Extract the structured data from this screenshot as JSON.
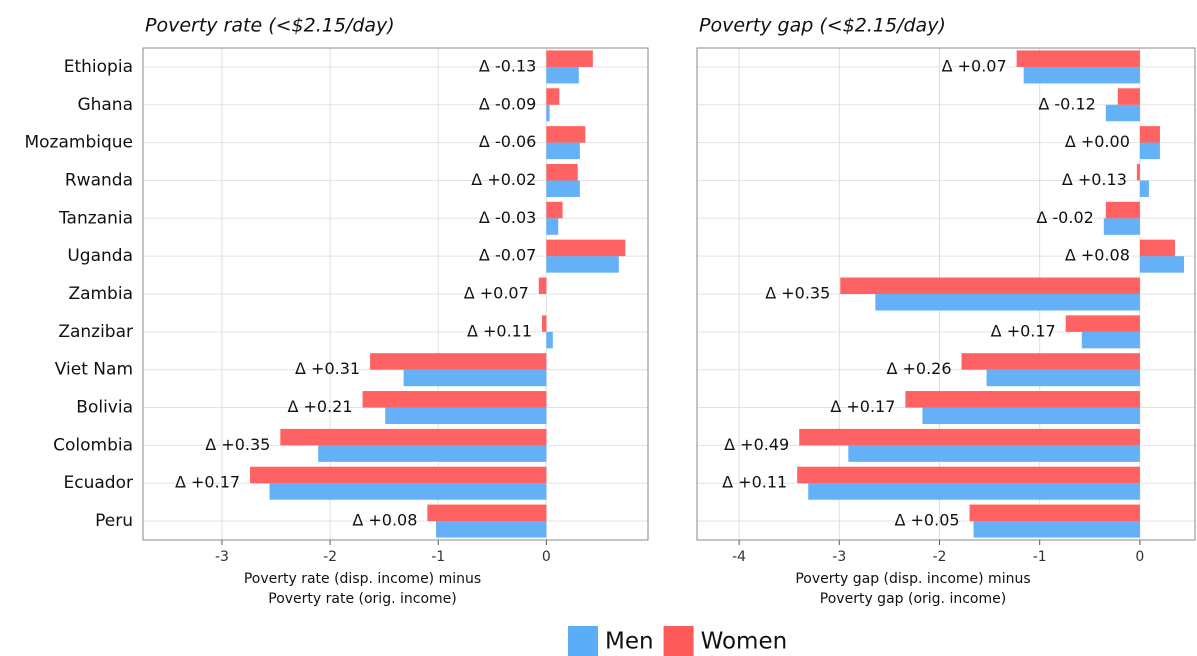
{
  "chart_data": [
    {
      "type": "bar",
      "orientation": "horizontal",
      "title": "Poverty rate (<$2.15/day)",
      "xlabel": [
        "Poverty rate (disp. income) minus",
        "Poverty rate (orig. income)"
      ],
      "categories": [
        "Ethiopia",
        "Ghana",
        "Mozambique",
        "Rwanda",
        "Tanzania",
        "Uganda",
        "Zambia",
        "Zanzibar",
        "Viet Nam",
        "Bolivia",
        "Colombia",
        "Ecuador",
        "Peru"
      ],
      "series": [
        {
          "name": "Men",
          "color": "#5cadf8",
          "values": [
            0.3,
            0.03,
            0.31,
            0.31,
            0.11,
            0.67,
            0.0,
            0.06,
            -1.32,
            -1.49,
            -2.11,
            -2.56,
            -1.02
          ]
        },
        {
          "name": "Women",
          "color": "#ff5a5a",
          "values": [
            0.43,
            0.12,
            0.36,
            0.29,
            0.15,
            0.73,
            -0.07,
            -0.04,
            -1.63,
            -1.7,
            -2.46,
            -2.74,
            -1.1
          ]
        }
      ],
      "annotations": [
        {
          "text": "Δ -0.13",
          "color": "#2b95ec"
        },
        {
          "text": "Δ -0.09",
          "color": "#2b95ec"
        },
        {
          "text": "Δ -0.06",
          "color": "#2b95ec"
        },
        {
          "text": "Δ +0.02",
          "color": "#e8191e"
        },
        {
          "text": "Δ -0.03",
          "color": "#2b95ec"
        },
        {
          "text": "Δ -0.07",
          "color": "#2b95ec"
        },
        {
          "text": "Δ +0.07",
          "color": "#e8191e"
        },
        {
          "text": "Δ +0.11",
          "color": "#e8191e"
        },
        {
          "text": "Δ +0.31",
          "color": "#e8191e"
        },
        {
          "text": "Δ +0.21",
          "color": "#e8191e"
        },
        {
          "text": "Δ +0.35",
          "color": "#e8191e"
        },
        {
          "text": "Δ +0.17",
          "color": "#e8191e"
        },
        {
          "text": "Δ +0.08",
          "color": "#e8191e"
        }
      ],
      "xlim": [
        -3.73,
        0.94
      ],
      "xticks": [
        -3,
        -2,
        -1,
        0
      ],
      "grid": true
    },
    {
      "type": "bar",
      "orientation": "horizontal",
      "title": "Poverty gap (<$2.15/day)",
      "xlabel": [
        "Poverty gap (disp. income) minus",
        "Poverty gap (orig. income)"
      ],
      "series": [
        {
          "color": "#5cadf8",
          "values": [
            -1.16,
            -0.34,
            0.2,
            0.09,
            -0.36,
            0.44,
            -2.64,
            -0.58,
            -1.53,
            -2.17,
            -2.91,
            -3.31,
            -1.66
          ]
        },
        {
          "color": "#ff5a5a",
          "values": [
            -1.23,
            -0.22,
            0.2,
            -0.03,
            -0.34,
            0.35,
            -2.99,
            -0.74,
            -1.78,
            -2.34,
            -3.4,
            -3.42,
            -1.7
          ]
        }
      ],
      "annotations": [
        {
          "text": "Δ +0.07",
          "color": "#e8191e"
        },
        {
          "text": "Δ -0.12",
          "color": "#2b95ec"
        },
        {
          "text": "Δ +0.00",
          "color": "#e8191e"
        },
        {
          "text": "Δ +0.13",
          "color": "#e8191e"
        },
        {
          "text": "Δ -0.02",
          "color": "#2b95ec"
        },
        {
          "text": "Δ +0.08",
          "color": "#e8191e"
        },
        {
          "text": "Δ +0.35",
          "color": "#e8191e"
        },
        {
          "text": "Δ +0.17",
          "color": "#e8191e"
        },
        {
          "text": "Δ +0.26",
          "color": "#e8191e"
        },
        {
          "text": "Δ +0.17",
          "color": "#e8191e"
        },
        {
          "text": "Δ +0.49",
          "color": "#e8191e"
        },
        {
          "text": "Δ +0.11",
          "color": "#e8191e"
        },
        {
          "text": "Δ +0.05",
          "color": "#e8191e"
        }
      ],
      "xlim": [
        -4.42,
        0.55
      ],
      "xticks": [
        -4,
        -3,
        -2,
        -1,
        0
      ],
      "grid": true
    }
  ],
  "legend": "bottom"
}
